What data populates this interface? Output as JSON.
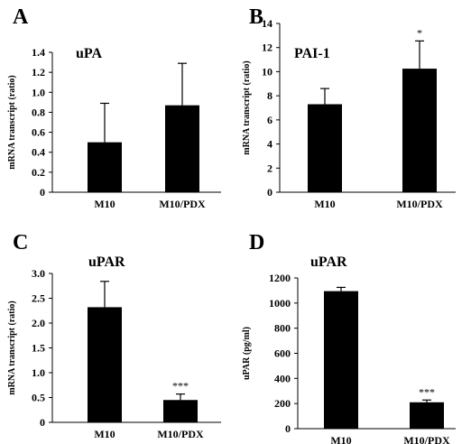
{
  "chart_data": [
    {
      "panel": "A",
      "type": "bar",
      "title": "uPA",
      "ylabel": "mRNA transcript (ratio)",
      "categories": [
        "M10",
        "M10/PDX"
      ],
      "values": [
        0.5,
        0.87
      ],
      "errors": [
        0.39,
        0.42
      ],
      "significance": [
        "",
        ""
      ],
      "ylim": [
        0,
        1.4
      ],
      "yticks": [
        "0",
        "0.2",
        "0.4",
        "0.6",
        "0.8",
        "1.0",
        "1.2",
        "1.4"
      ],
      "grid": false
    },
    {
      "panel": "B",
      "type": "bar",
      "title": "PAI-1",
      "ylabel": "mRNA transcript (ratio)",
      "categories": [
        "M10",
        "M10/PDX"
      ],
      "values": [
        7.3,
        10.25
      ],
      "errors": [
        1.3,
        2.3
      ],
      "significance": [
        "",
        "*"
      ],
      "ylim": [
        0,
        14
      ],
      "yticks": [
        "0",
        "2",
        "4",
        "6",
        "8",
        "10",
        "12",
        "14"
      ],
      "grid": false
    },
    {
      "panel": "C",
      "type": "bar",
      "title": "uPAR",
      "ylabel": "mRNA transcript (ratio)",
      "categories": [
        "M10",
        "M10/PDX"
      ],
      "values": [
        2.32,
        0.45
      ],
      "errors": [
        0.52,
        0.12
      ],
      "significance": [
        "",
        "***"
      ],
      "ylim": [
        0,
        3.0
      ],
      "yticks": [
        "0",
        "0.5",
        "1.0",
        "1.5",
        "2.0",
        "2.5",
        "3.0"
      ],
      "grid": false
    },
    {
      "panel": "D",
      "type": "bar",
      "title": "uPAR",
      "ylabel": "uPAR (pg/ml)",
      "categories": [
        "M10",
        "M10/PDX"
      ],
      "values": [
        1095,
        210
      ],
      "errors": [
        30,
        18
      ],
      "significance": [
        "",
        "***"
      ],
      "ylim": [
        0,
        1200
      ],
      "yticks": [
        "0",
        "200",
        "400",
        "600",
        "800",
        "1000",
        "1200"
      ],
      "grid": false
    }
  ],
  "colors": {
    "bar": "#000000",
    "background": "#ffffff"
  }
}
